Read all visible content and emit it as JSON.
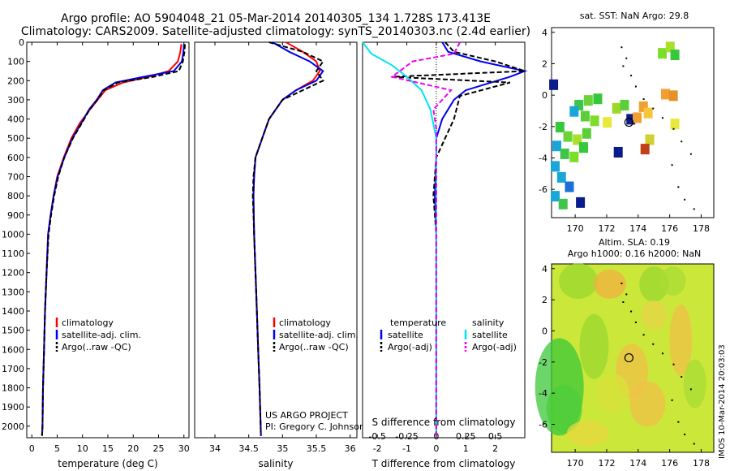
{
  "title_line1": "Argo profile: AO 5904048_21 05-Mar-2014 20140305_134 1.728S 173.413E",
  "title_line2": "Climatology: CARS2009. Satellite-adjusted climatology: synTS_20140303.nc (2.4d earlier)",
  "chart_data": [
    {
      "type": "line",
      "id": "temperature",
      "xlabel": "temperature (deg C)",
      "ylabel": "",
      "xlim": [
        -1,
        31
      ],
      "ylim": [
        2060,
        0
      ],
      "xticks": [
        0,
        5,
        10,
        15,
        20,
        25,
        30
      ],
      "yticks": [
        0,
        100,
        200,
        300,
        400,
        500,
        600,
        700,
        800,
        900,
        1000,
        1100,
        1200,
        1300,
        1400,
        1500,
        1600,
        1700,
        1800,
        1900,
        2000
      ],
      "legend": [
        "climatology",
        "satellite-adj. clim.",
        "Argo(..raw -QC)"
      ],
      "series": [
        {
          "name": "climatology",
          "color": "#ff0000",
          "dash": "",
          "x": [
            29.5,
            29.3,
            28.8,
            27.0,
            23.0,
            18.0,
            14.5,
            13.0,
            11.5,
            9.5,
            7.8,
            6.3,
            5.0,
            4.3,
            3.7,
            3.2,
            2.9,
            2.6,
            2.4,
            2.2,
            2.1,
            2.0
          ],
          "y": [
            10,
            50,
            100,
            150,
            180,
            210,
            250,
            300,
            350,
            420,
            500,
            600,
            700,
            800,
            900,
            1000,
            1200,
            1400,
            1600,
            1800,
            2000,
            2050
          ]
        },
        {
          "name": "satellite-adj. clim.",
          "color": "#0000ee",
          "dash": "",
          "x": [
            30.0,
            29.9,
            29.6,
            28.0,
            22.0,
            16.5,
            14.0,
            12.8,
            11.3,
            9.8,
            8.0,
            6.4,
            5.1,
            4.3,
            3.7,
            3.2,
            2.9,
            2.6,
            2.4,
            2.2,
            2.1,
            2.0
          ],
          "y": [
            10,
            50,
            100,
            150,
            180,
            210,
            250,
            300,
            350,
            420,
            500,
            600,
            700,
            800,
            900,
            1000,
            1200,
            1400,
            1600,
            1800,
            2000,
            2050
          ]
        },
        {
          "name": "Argo(..raw -QC)",
          "color": "#000000",
          "dash": "6,3",
          "x": [
            30.2,
            30.1,
            29.8,
            29.0,
            24.0,
            17.0,
            14.2,
            12.9,
            11.4,
            9.9,
            8.1,
            6.4,
            5.2,
            4.4,
            3.8,
            3.3,
            2.9,
            2.6,
            2.4,
            2.2,
            2.1,
            2.0
          ],
          "y": [
            10,
            50,
            100,
            150,
            180,
            210,
            250,
            300,
            350,
            420,
            500,
            600,
            700,
            800,
            900,
            1000,
            1200,
            1400,
            1600,
            1800,
            2000,
            2050
          ]
        }
      ]
    },
    {
      "type": "line",
      "id": "salinity",
      "xlabel": "salinity",
      "ylabel": "",
      "xlim": [
        33.7,
        36.1
      ],
      "ylim": [
        2060,
        0
      ],
      "xticks": [
        34,
        34.5,
        35,
        35.5,
        36
      ],
      "legend": [
        "climatology",
        "satellite-adj. clim.",
        "Argo(..raw -QC)"
      ],
      "series": [
        {
          "name": "climatology",
          "color": "#ff0000",
          "dash": "",
          "x": [
            35.05,
            35.3,
            35.5,
            35.55,
            35.45,
            35.2,
            35.0,
            34.8,
            34.7,
            34.6,
            34.58,
            34.57,
            34.58,
            34.6,
            34.62,
            34.64,
            34.66,
            34.68
          ],
          "y": [
            0,
            50,
            100,
            150,
            200,
            250,
            300,
            400,
            500,
            600,
            700,
            800,
            1000,
            1200,
            1400,
            1600,
            1800,
            2050
          ]
        },
        {
          "name": "satellite-adj. clim.",
          "color": "#0000ee",
          "dash": "",
          "x": [
            34.85,
            35.1,
            35.4,
            35.6,
            35.5,
            35.2,
            35.0,
            34.8,
            34.7,
            34.6,
            34.58,
            34.57,
            34.58,
            34.6,
            34.62,
            34.64,
            34.66,
            34.68
          ],
          "y": [
            0,
            50,
            100,
            150,
            200,
            250,
            300,
            400,
            500,
            600,
            700,
            800,
            1000,
            1200,
            1400,
            1600,
            1800,
            2050
          ]
        },
        {
          "name": "Argo(..raw -QC)",
          "color": "#000000",
          "dash": "6,3",
          "x": [
            34.8,
            35.3,
            35.6,
            35.5,
            35.6,
            35.3,
            35.0,
            34.8,
            34.7,
            34.6,
            34.57,
            34.56,
            34.58,
            34.6,
            34.62,
            34.64,
            34.66,
            34.68
          ],
          "y": [
            0,
            50,
            100,
            150,
            200,
            250,
            300,
            400,
            500,
            600,
            700,
            800,
            1000,
            1200,
            1400,
            1600,
            1800,
            2050
          ]
        }
      ]
    },
    {
      "type": "line",
      "id": "difference",
      "xlabel": "T difference from climatology",
      "xlabel_top": "S difference from climatology",
      "ylabel": "",
      "xlim": [
        -2.5,
        3.0
      ],
      "ylim": [
        2060,
        0
      ],
      "xticks": [
        -2,
        -1,
        0,
        1,
        2
      ],
      "xticks_s": [
        "-0.5",
        "-0.25",
        "0",
        "0.25",
        "0.5"
      ],
      "xticks_s_pos": [
        -2,
        -1,
        0,
        1,
        2
      ],
      "legend_temperature_label": "temperature",
      "legend_salinity_label": "salinity",
      "legend": [
        "satellite",
        "Argo(-adj)",
        "satellite",
        "Argo(-adj)"
      ],
      "series": [
        {
          "name": "satellite",
          "group": "temperature",
          "color": "#0000ee",
          "dash": "",
          "x": [
            0.2,
            0.4,
            1.5,
            3.0,
            2.5,
            1.0,
            0.6,
            0.2,
            0.0,
            0.0,
            -0.05,
            0.0,
            0.0,
            0.0,
            0.0,
            0.0,
            0.0
          ],
          "y": [
            0,
            50,
            100,
            150,
            180,
            250,
            300,
            400,
            500,
            600,
            800,
            1000,
            1200,
            1400,
            1600,
            1800,
            2050
          ]
        },
        {
          "name": "Argo(-adj)",
          "group": "temperature",
          "color": "#000000",
          "dash": "6,3",
          "x": [
            0.3,
            0.6,
            2.0,
            3.0,
            -1.5,
            2.5,
            0.8,
            0.6,
            0.3,
            0.0,
            -0.1,
            0.0,
            0.0,
            0.0,
            0.0,
            0.0,
            0.0
          ],
          "y": [
            0,
            50,
            100,
            150,
            180,
            210,
            280,
            400,
            500,
            600,
            800,
            1000,
            1200,
            1400,
            1600,
            1800,
            2050
          ]
        },
        {
          "name": "satellite",
          "group": "salinity",
          "color": "#00e5ee",
          "dash": "",
          "x": [
            -2.6,
            -2.2,
            -1.5,
            -1.0,
            -0.5,
            -0.2,
            0.0,
            0.0,
            0.0,
            0.0,
            0.0,
            0.0,
            0.0,
            0.0,
            0.0
          ],
          "y": [
            0,
            60,
            120,
            180,
            250,
            350,
            500,
            600,
            800,
            1000,
            1200,
            1400,
            1600,
            1800,
            2050
          ]
        },
        {
          "name": "Argo(-adj)",
          "group": "salinity",
          "color": "#ee00ee",
          "dash": "6,3",
          "x": [
            0.8,
            0.6,
            -0.8,
            -1.5,
            0.5,
            -0.1,
            0.0,
            0.0,
            0.0,
            0.0,
            0.0,
            0.0,
            0.0,
            0.0,
            0.0,
            0.0
          ],
          "y": [
            0,
            60,
            100,
            180,
            250,
            350,
            450,
            600,
            800,
            1000,
            1200,
            1400,
            1600,
            1800,
            2000,
            2050
          ]
        }
      ]
    },
    {
      "type": "heatmap",
      "id": "sst-map",
      "title": "sat. SST: NaN Argo: 29.8",
      "xlim": [
        168.5,
        178.8
      ],
      "ylim": [
        -7.8,
        4.3
      ],
      "xticks": [
        170,
        172,
        174,
        176,
        178
      ],
      "yticks": [
        -6,
        -4,
        -2,
        0,
        2,
        4
      ]
    },
    {
      "type": "heatmap",
      "id": "sla-map",
      "title_line1": "Altim. SLA: 0.19",
      "title_line2": "Argo h1000: 0.16 h2000: NaN",
      "xlim": [
        168.5,
        178.8
      ],
      "ylim": [
        -7.8,
        4.3
      ],
      "xticks": [
        170,
        172,
        174,
        176,
        178
      ],
      "yticks": [
        -6,
        -4,
        -2,
        0,
        2,
        4
      ]
    }
  ],
  "credits_line1": "US ARGO PROJECT",
  "credits_line2": "PI: Gregory C. Johnson",
  "side_stamp": "IMOS 10-Mar-2014 20:03:03"
}
